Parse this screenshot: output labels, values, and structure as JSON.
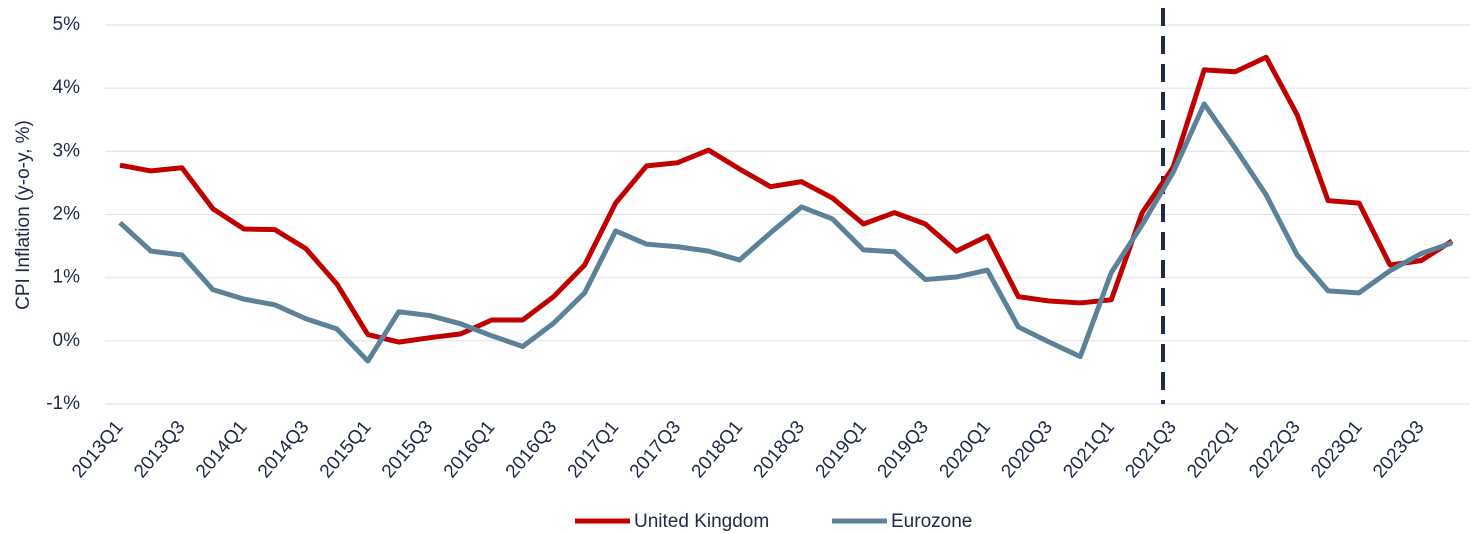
{
  "chart_data": {
    "type": "line",
    "y_label": "CPI Inflation (y-o-y, %)",
    "categories": [
      "2013Q1",
      null,
      "2013Q3",
      null,
      "2014Q1",
      null,
      "2014Q3",
      null,
      "2015Q1",
      null,
      "2015Q3",
      null,
      "2016Q1",
      null,
      "2016Q3",
      null,
      "2017Q1",
      null,
      "2017Q3",
      null,
      "2018Q1",
      null,
      "2018Q3",
      null,
      "2019Q1",
      null,
      "2019Q3",
      null,
      "2020Q1",
      null,
      "2020Q3",
      null,
      "2021Q1",
      null,
      "2021Q3",
      null,
      "2022Q1",
      null,
      "2022Q3",
      null,
      "2023Q1",
      null,
      "2023Q3",
      null
    ],
    "series": [
      {
        "name": "United Kingdom",
        "color": "#c00000",
        "values": [
          2.78,
          2.69,
          2.74,
          2.09,
          1.77,
          1.76,
          1.46,
          0.9,
          0.1,
          -0.02,
          0.05,
          0.11,
          0.33,
          0.33,
          0.7,
          1.2,
          2.18,
          2.77,
          2.82,
          3.02,
          2.72,
          2.44,
          2.52,
          2.26,
          1.85,
          2.03,
          1.85,
          1.42,
          1.66,
          0.7,
          0.63,
          0.6,
          0.65,
          2.03,
          2.75,
          4.29,
          4.26,
          4.49,
          3.58,
          2.22,
          2.18,
          1.2,
          1.27,
          1.58
        ]
      },
      {
        "name": "Eurozone",
        "color": "#5b8299",
        "values": [
          1.87,
          1.42,
          1.36,
          0.81,
          0.66,
          0.57,
          0.35,
          0.19,
          -0.32,
          0.46,
          0.4,
          0.27,
          0.08,
          -0.09,
          0.28,
          0.76,
          1.74,
          1.53,
          1.49,
          1.42,
          1.28,
          1.71,
          2.12,
          1.93,
          1.44,
          1.41,
          0.97,
          1.01,
          1.12,
          0.22,
          -0.02,
          -0.25,
          1.08,
          1.84,
          2.67,
          3.75,
          3.05,
          2.31,
          1.36,
          0.79,
          0.76,
          1.11,
          1.38,
          1.55
        ]
      }
    ],
    "ylim": [
      -1,
      5
    ],
    "yticks": [
      {
        "value": -1,
        "label": "-1%"
      },
      {
        "value": 0,
        "label": "0%"
      },
      {
        "value": 1,
        "label": "1%"
      },
      {
        "value": 2,
        "label": "2%"
      },
      {
        "value": 3,
        "label": "3%"
      },
      {
        "value": 4,
        "label": "4%"
      },
      {
        "value": 5,
        "label": "5%"
      }
    ],
    "grid": true,
    "legend": "bottom"
  }
}
